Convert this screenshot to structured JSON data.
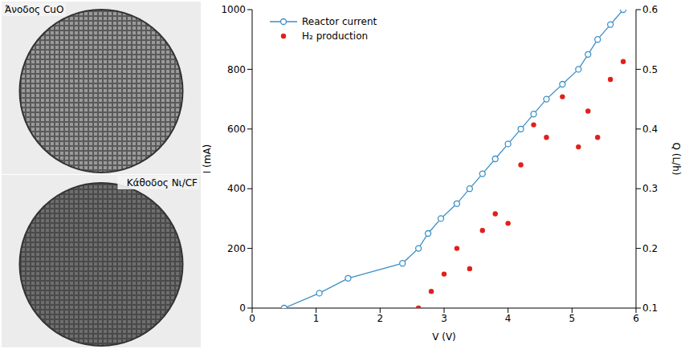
{
  "photos": [
    {
      "label": "Άνοδος CuO"
    },
    {
      "label": "Κάθοδος Nι/CF"
    }
  ],
  "chart_data": {
    "type": "scatter",
    "xlabel": "V (V)",
    "ylabel": "I (mA)",
    "y2label": "Q (L/h)",
    "xlim": [
      0,
      6
    ],
    "xticks": [
      0,
      1,
      2,
      3,
      4,
      5,
      6
    ],
    "ylim": [
      0,
      1000
    ],
    "yticks": [
      0,
      200,
      400,
      600,
      800,
      1000
    ],
    "y2lim": [
      0.1,
      0.6
    ],
    "y2ticks": [
      0.1,
      0.2,
      0.3,
      0.4,
      0.5,
      0.6
    ],
    "legend": "upper left",
    "series": [
      {
        "name": "Reactor current",
        "type": "line",
        "marker": "open_circle",
        "color": "#3d8fc6",
        "axis": "y",
        "x": [
          0.5,
          1.05,
          1.5,
          2.35,
          2.6,
          2.75,
          2.95,
          3.2,
          3.4,
          3.6,
          3.8,
          4.0,
          4.2,
          4.4,
          4.6,
          4.85,
          5.1,
          5.25,
          5.4,
          5.6,
          5.8
        ],
        "values": [
          0,
          50,
          100,
          150,
          200,
          250,
          300,
          350,
          400,
          450,
          500,
          550,
          600,
          650,
          700,
          750,
          800,
          850,
          900,
          950,
          1000
        ]
      },
      {
        "name": "H₂ production",
        "type": "scatter",
        "marker": "circle",
        "color": "#e0201c",
        "axis": "y2",
        "x": [
          2.6,
          2.8,
          3.0,
          3.2,
          3.4,
          3.6,
          3.8,
          4.0,
          4.2,
          4.4,
          4.6,
          4.85,
          5.1,
          5.25,
          5.4,
          5.6,
          5.8
        ],
        "values": [
          0.1,
          0.128,
          0.157,
          0.2,
          0.166,
          0.23,
          0.258,
          0.242,
          0.34,
          0.407,
          0.386,
          0.454,
          0.37,
          0.43,
          0.386,
          0.483,
          0.513
        ]
      }
    ]
  }
}
